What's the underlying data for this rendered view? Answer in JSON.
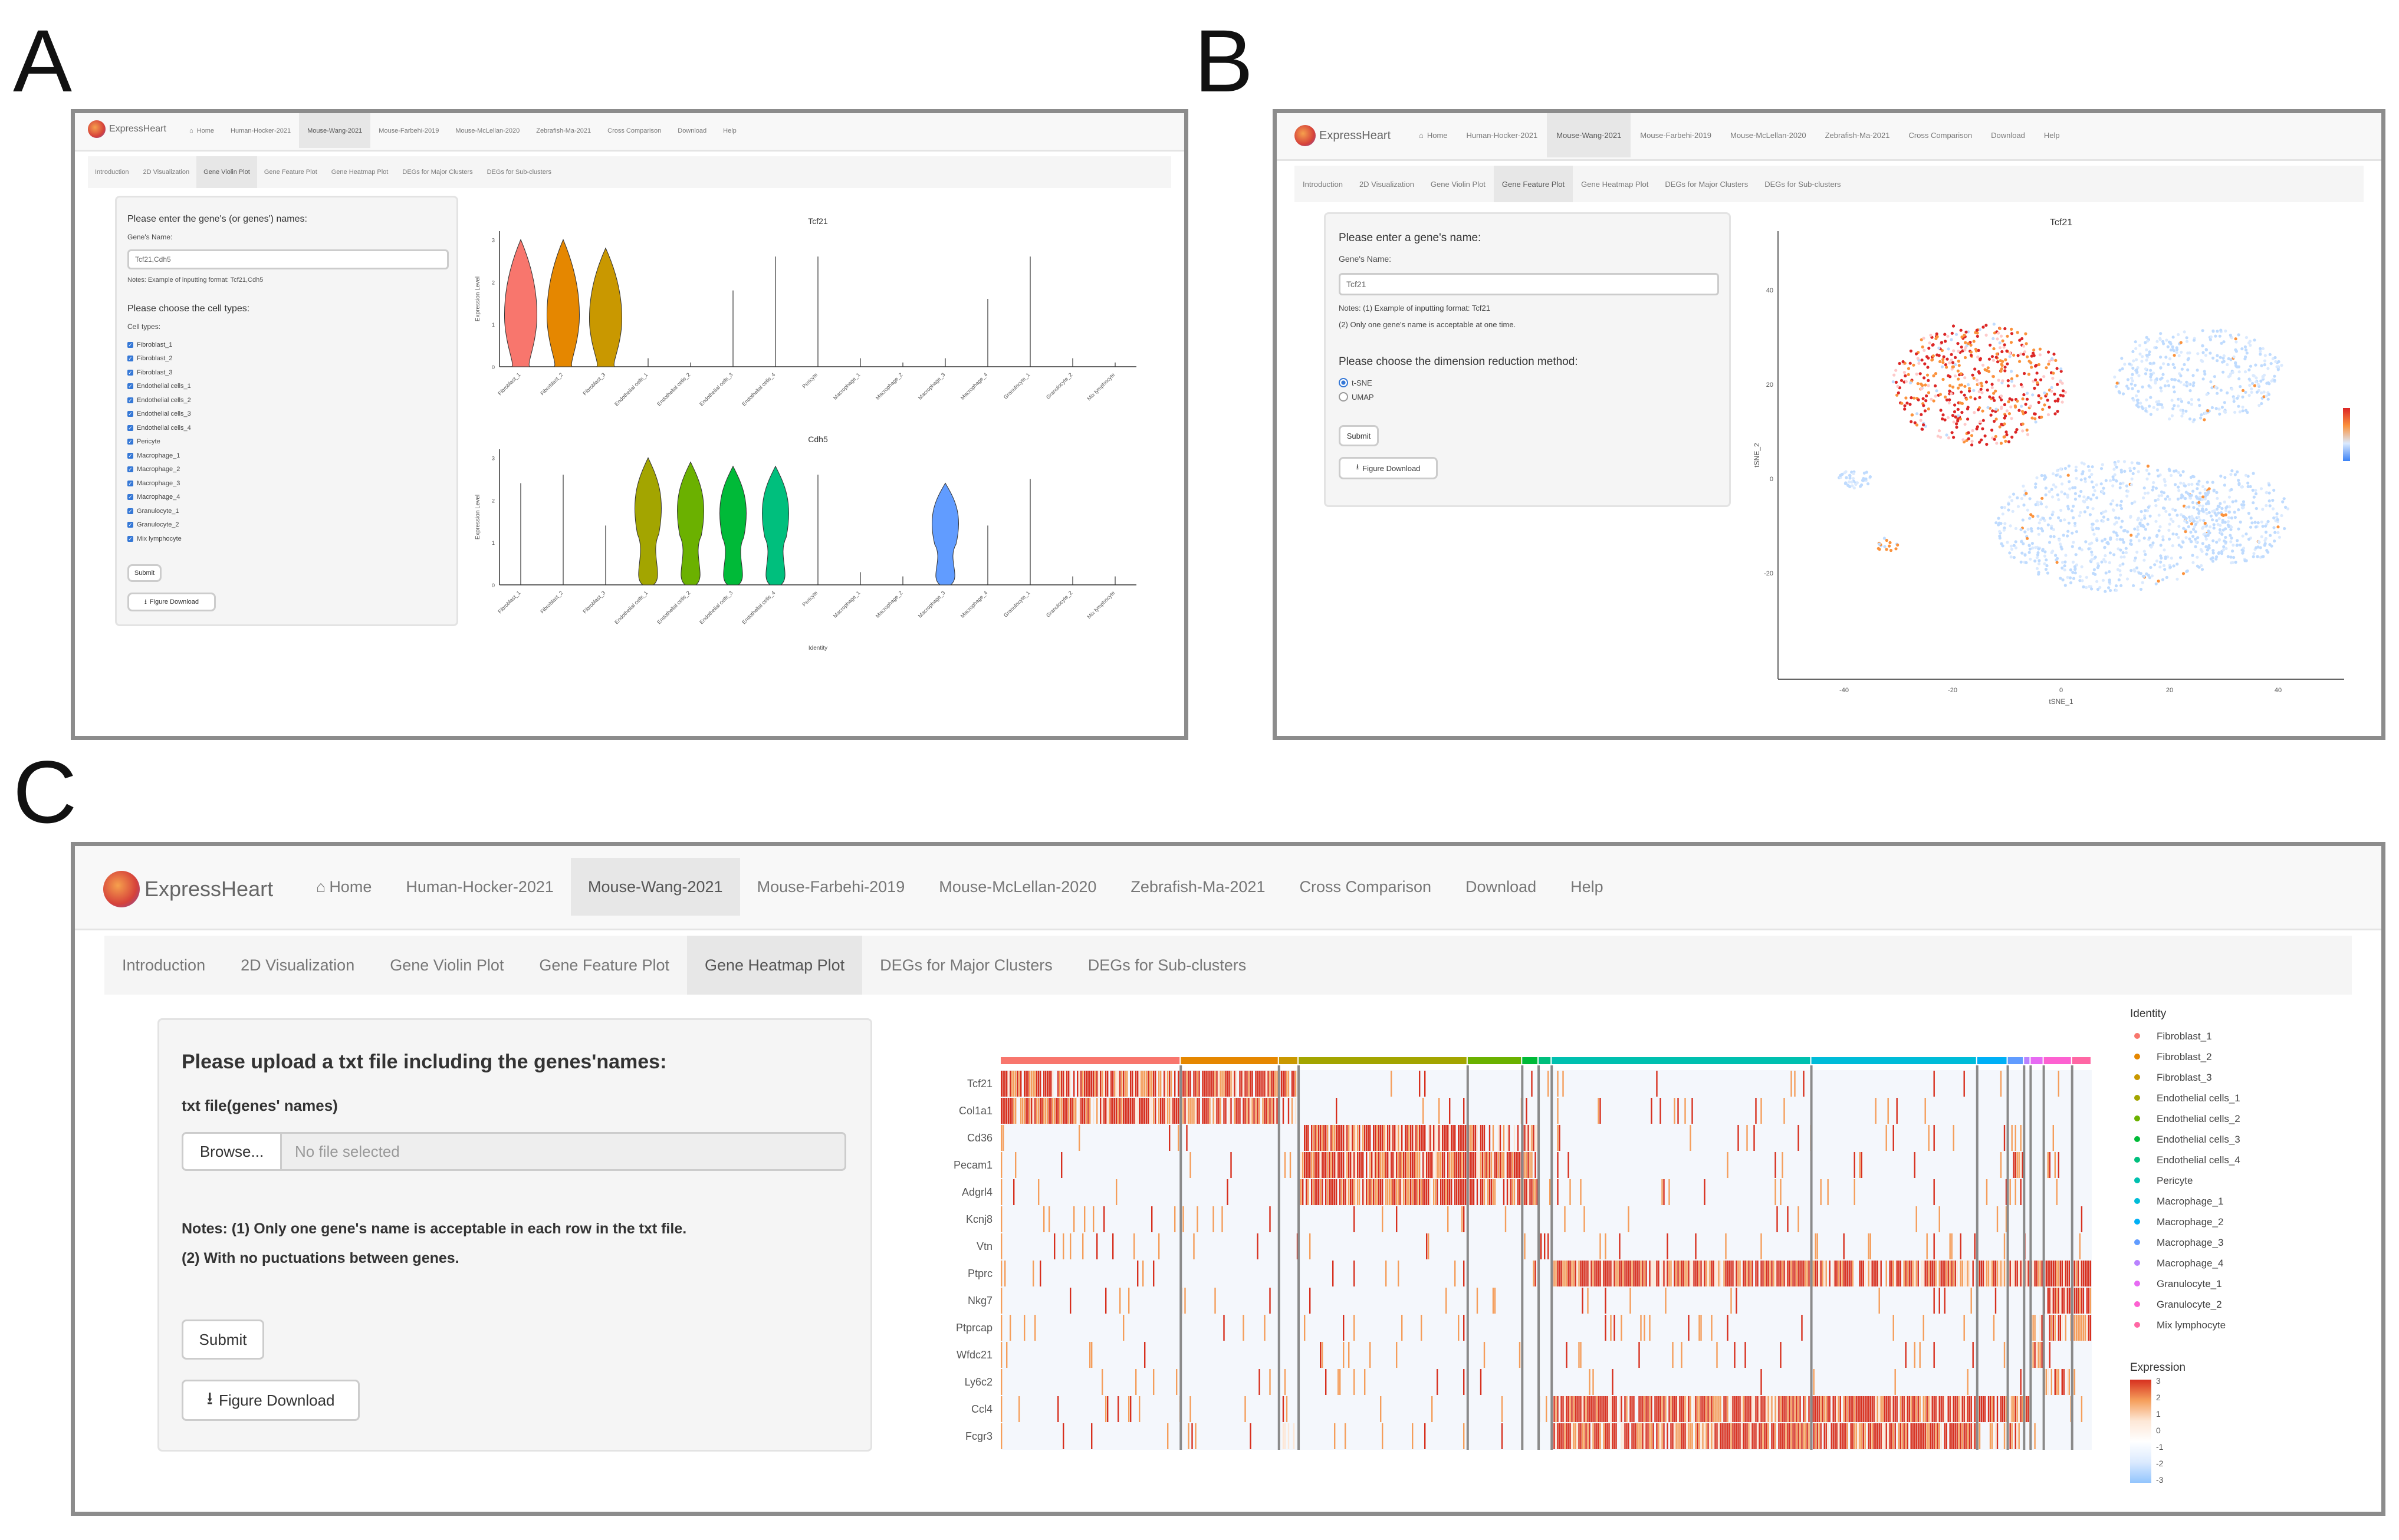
{
  "panels": {
    "a": "A",
    "b": "B",
    "c": "C"
  },
  "brand": {
    "name": "ExpressHeart"
  },
  "nav": {
    "home": "Home",
    "items": [
      "Human-Hocker-2021",
      "Mouse-Wang-2021",
      "Mouse-Farbehi-2019",
      "Mouse-McLellan-2020",
      "Zebrafish-Ma-2021",
      "Cross Comparison",
      "Download",
      "Help"
    ],
    "active_index": 1
  },
  "subnav": {
    "items": [
      "Introduction",
      "2D Visualization",
      "Gene Violin Plot",
      "Gene Feature Plot",
      "Gene Heatmap Plot",
      "DEGs for Major Clusters",
      "DEGs for Sub-clusters"
    ]
  },
  "panel_a": {
    "active_tab": 2,
    "prompt": "Please enter the gene's (or genes') names:",
    "field_label": "Gene's Name:",
    "field_value": "Tcf21,Cdh5",
    "hint": "Notes: Example of inputting format: Tcf21,Cdh5",
    "celltypes_heading": "Please choose the cell types:",
    "celltypes_label": "Cell types:",
    "submit": "Submit",
    "download": "Figure Download",
    "plot1_title": "Tcf21",
    "plot2_title": "Cdh5",
    "ylabel": "Expression Level",
    "xlabel": "Identity"
  },
  "panel_b": {
    "active_tab": 3,
    "prompt": "Please enter a gene's name:",
    "field_label": "Gene's Name:",
    "field_value": "Tcf21",
    "note1": "Notes: (1) Example of inputting format: Tcf21",
    "note2": "(2) Only one gene's name is acceptable at one time.",
    "method_heading": "Please choose the dimension reduction method:",
    "methods": [
      "t-SNE",
      "UMAP"
    ],
    "submit": "Submit",
    "download": "Figure Download",
    "plot_title": "Tcf21",
    "xlabel": "tSNE_1",
    "ylabel": "tSNE_2",
    "x_ticks": [
      "-40",
      "-20",
      "0",
      "20",
      "40"
    ],
    "y_ticks": [
      "40",
      "20",
      "0",
      "-20"
    ]
  },
  "panel_c": {
    "active_tab": 4,
    "prompt": "Please upload a txt file including the genes'names:",
    "file_label": "txt file(genes' names)",
    "browse": "Browse...",
    "file_placeholder": "No file selected",
    "note1": "Notes: (1) Only one gene's name is acceptable in each row in the txt file.",
    "note2": "(2) With no puctuations between genes.",
    "submit": "Submit",
    "download": "Figure Download",
    "legend_title": "Identity",
    "expression_title": "Expression"
  },
  "cell_types": [
    "Fibroblast_1",
    "Fibroblast_2",
    "Fibroblast_3",
    "Endothelial cells_1",
    "Endothelial cells_2",
    "Endothelial cells_3",
    "Endothelial cells_4",
    "Pericyte",
    "Macrophage_1",
    "Macrophage_2",
    "Macrophage_3",
    "Macrophage_4",
    "Granulocyte_1",
    "Granulocyte_2",
    "Mix lymphocyte"
  ],
  "cell_type_colors": [
    "#f8766d",
    "#e58700",
    "#c99800",
    "#a3a500",
    "#6bb100",
    "#00ba38",
    "#00bf7d",
    "#00c0af",
    "#00bcd8",
    "#00b0f6",
    "#619cff",
    "#b983ff",
    "#e76bf3",
    "#fd61d1",
    "#ff67a4"
  ],
  "chart_data": [
    {
      "type": "violin",
      "title": "Tcf21",
      "ylabel": "Expression Level",
      "xlabel": "Identity",
      "categories": [
        "Fibroblast_1",
        "Fibroblast_2",
        "Fibroblast_3",
        "Endothelial cells_1",
        "Endothelial cells_2",
        "Endothelial cells_3",
        "Endothelial cells_4",
        "Pericyte",
        "Macrophage_1",
        "Macrophage_2",
        "Macrophage_3",
        "Macrophage_4",
        "Granulocyte_1",
        "Granulocyte_2",
        "Mix lymphocyte"
      ],
      "max_values": [
        3.0,
        3.0,
        2.8,
        0.2,
        0.1,
        1.8,
        2.6,
        2.6,
        0.2,
        0.1,
        0.2,
        1.6,
        2.6,
        0.2,
        0.1
      ],
      "violin_bodies": [
        true,
        true,
        true,
        false,
        false,
        false,
        false,
        false,
        false,
        false,
        false,
        false,
        false,
        false,
        false
      ]
    },
    {
      "type": "violin",
      "title": "Cdh5",
      "ylabel": "Expression Level",
      "xlabel": "Identity",
      "categories": [
        "Fibroblast_1",
        "Fibroblast_2",
        "Fibroblast_3",
        "Endothelial cells_1",
        "Endothelial cells_2",
        "Endothelial cells_3",
        "Endothelial cells_4",
        "Pericyte",
        "Macrophage_1",
        "Macrophage_2",
        "Macrophage_3",
        "Macrophage_4",
        "Granulocyte_1",
        "Granulocyte_2",
        "Mix lymphocyte"
      ],
      "max_values": [
        2.4,
        2.6,
        1.4,
        3.0,
        2.9,
        2.8,
        2.8,
        2.6,
        0.3,
        0.2,
        2.4,
        1.4,
        2.5,
        0.2,
        0.2
      ],
      "violin_bodies": [
        false,
        false,
        false,
        true,
        true,
        true,
        true,
        false,
        false,
        false,
        true,
        false,
        false,
        false,
        false
      ]
    },
    {
      "type": "scatter",
      "title": "Tcf21",
      "xlabel": "tSNE_1",
      "ylabel": "tSNE_2",
      "xlim": [
        -50,
        50
      ],
      "ylim": [
        -40,
        50
      ],
      "clusters": [
        {
          "name": "high",
          "cx": -15,
          "cy": 20,
          "rx": 16,
          "ry": 13,
          "n": 520,
          "expr": "high"
        },
        {
          "name": "c2",
          "cx": 25,
          "cy": 22,
          "rx": 16,
          "ry": 10,
          "n": 380,
          "expr": "low"
        },
        {
          "name": "c3",
          "cx": 10,
          "cy": -10,
          "rx": 22,
          "ry": 14,
          "n": 700,
          "expr": "low"
        },
        {
          "name": "c4",
          "cx": 32,
          "cy": -8,
          "rx": 10,
          "ry": 10,
          "n": 220,
          "expr": "low"
        },
        {
          "name": "c5",
          "cx": -38,
          "cy": 0,
          "rx": 3,
          "ry": 2,
          "n": 40,
          "expr": "low"
        },
        {
          "name": "c6",
          "cx": -32,
          "cy": -14,
          "rx": 2,
          "ry": 1.5,
          "n": 16,
          "expr": "mid"
        }
      ],
      "color_scale": [
        "#3b82f6",
        "#dbeafe",
        "#fb923c",
        "#dc2626"
      ]
    },
    {
      "type": "heatmap",
      "genes": [
        "Tcf21",
        "Col1a1",
        "Cd36",
        "Pecam1",
        "Adgrl4",
        "Kcnj8",
        "Vtn",
        "Ptprc",
        "Nkg7",
        "Ptprcap",
        "Wfdc21",
        "Ly6c2",
        "Ccl4",
        "Fcgr3"
      ],
      "identities": [
        "Fibroblast_1",
        "Fibroblast_2",
        "Fibroblast_3",
        "Endothelial cells_1",
        "Endothelial cells_2",
        "Endothelial cells_3",
        "Endothelial cells_4",
        "Pericyte",
        "Macrophage_1",
        "Macrophage_2",
        "Macrophage_3",
        "Macrophage_4",
        "Granulocyte_1",
        "Granulocyte_2",
        "Mix lymphocyte"
      ],
      "identity_widths": [
        0.165,
        0.09,
        0.018,
        0.155,
        0.05,
        0.015,
        0.012,
        0.238,
        0.152,
        0.028,
        0.015,
        0.006,
        0.012,
        0.026,
        0.018
      ],
      "block_expression": [
        [
          3,
          3,
          2,
          0,
          0,
          0,
          0,
          0,
          0,
          0,
          0,
          0,
          0,
          0,
          0
        ],
        [
          3,
          3,
          2,
          0,
          0,
          0,
          0,
          0,
          0,
          0,
          0,
          0,
          0,
          0,
          0
        ],
        [
          0,
          0,
          0,
          3,
          2,
          3,
          0,
          0,
          0,
          0,
          1,
          0,
          0,
          0,
          0
        ],
        [
          0,
          0,
          0,
          3,
          3,
          3,
          0,
          0,
          0,
          0,
          2,
          0,
          0,
          0,
          0
        ],
        [
          0,
          0,
          0,
          3,
          2,
          3,
          0,
          0,
          0,
          0,
          1,
          0,
          0,
          0,
          0
        ],
        [
          0,
          0,
          0,
          0,
          0,
          0,
          0,
          0,
          0,
          0,
          0,
          0,
          0,
          0,
          0
        ],
        [
          0,
          0,
          0,
          0,
          0,
          0,
          3,
          0,
          0,
          0,
          0,
          0,
          0,
          0,
          0
        ],
        [
          0,
          0,
          0,
          0,
          0,
          0,
          0,
          3,
          3,
          3,
          3,
          3,
          3,
          3,
          3
        ],
        [
          0,
          0,
          0,
          0,
          0,
          0,
          0,
          0,
          0,
          0,
          0,
          0,
          0,
          3,
          3
        ],
        [
          0,
          0,
          0,
          0,
          0,
          0,
          0,
          0,
          0,
          0,
          0,
          0,
          1,
          2,
          3
        ],
        [
          0,
          0,
          0,
          0,
          0,
          0,
          0,
          0,
          0,
          0,
          0,
          0,
          3,
          0,
          0
        ],
        [
          0,
          0,
          0,
          0,
          0,
          0,
          0,
          0,
          0,
          0,
          0,
          0,
          0,
          2,
          0
        ],
        [
          0,
          0,
          1,
          0,
          0,
          0,
          0,
          3,
          3,
          3,
          3,
          3,
          0,
          0,
          0
        ],
        [
          0,
          0,
          1,
          0,
          0,
          0,
          0,
          3,
          3,
          2,
          2,
          2,
          0,
          0,
          0
        ]
      ],
      "expression_scale": [
        "3",
        "2",
        "1",
        "0",
        "-1",
        "-2",
        "-3"
      ]
    }
  ]
}
